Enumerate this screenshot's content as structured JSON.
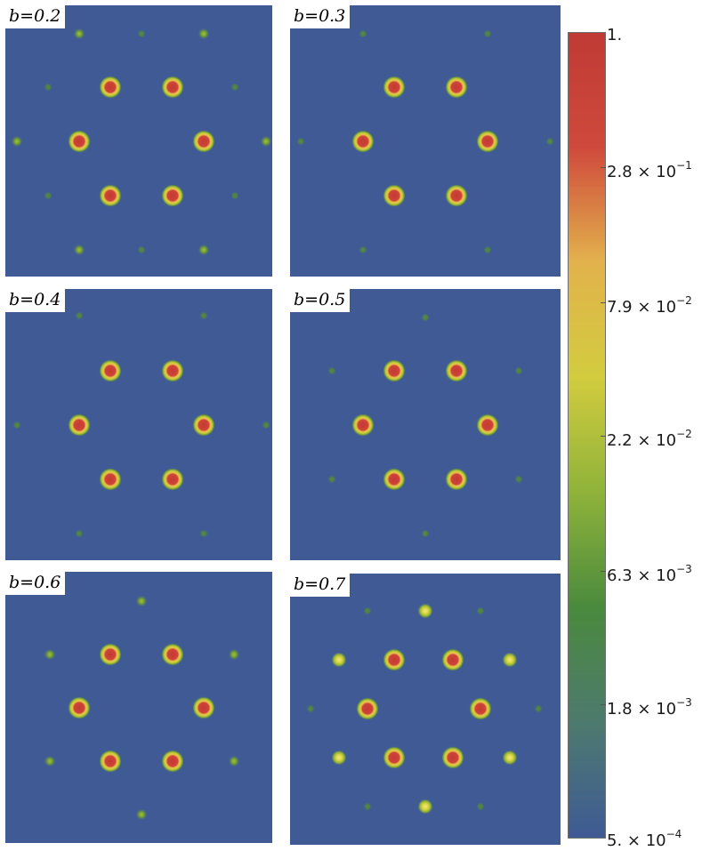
{
  "chart_data": [
    {
      "type": "heatmap",
      "label": "b=0.2"
    },
    {
      "type": "heatmap",
      "label": "b=0.3"
    },
    {
      "type": "heatmap",
      "label": "b=0.4"
    },
    {
      "type": "heatmap",
      "label": "b=0.5"
    },
    {
      "type": "heatmap",
      "label": "b=0.6"
    },
    {
      "type": "heatmap",
      "label": "b=0.7"
    }
  ],
  "colorbar": {
    "scale": "log",
    "range": [
      0.0005,
      1
    ],
    "ticks": [
      {
        "mantissa": "1.",
        "exponent": ""
      },
      {
        "mantissa": "2.8 × 10",
        "exponent": "−1"
      },
      {
        "mantissa": "7.9 × 10",
        "exponent": "−2"
      },
      {
        "mantissa": "2.2 × 10",
        "exponent": "−2"
      },
      {
        "mantissa": "6.3 × 10",
        "exponent": "−3"
      },
      {
        "mantissa": "1.8 × 10",
        "exponent": "−3"
      },
      {
        "mantissa": "5. × 10",
        "exponent": "−4"
      }
    ],
    "colors": [
      "#3f5a95",
      "#4d7a6e",
      "#4a8a3d",
      "#8fb33a",
      "#d2cc3e",
      "#e2b24c",
      "#cf4a3c",
      "#c03a35"
    ]
  }
}
